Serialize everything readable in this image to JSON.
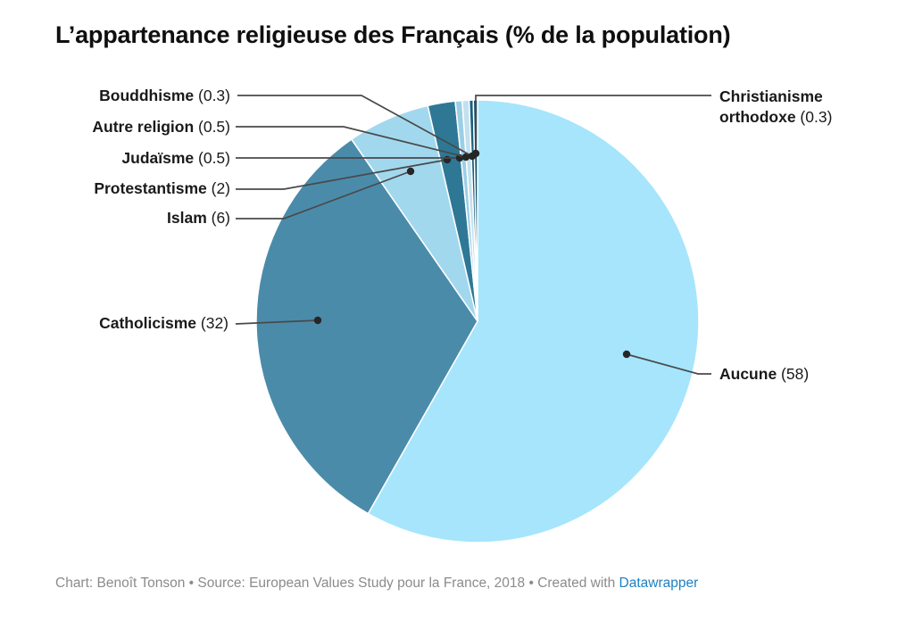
{
  "title": "L’appartenance religieuse des Français (% de la population)",
  "footer": {
    "prefix": "Chart: Benoît Tonson • Source: European Values Study pour la France, 2018 • Created with ",
    "link_label": "Datawrapper",
    "link_color": "#1d81c2",
    "text_color": "#8b8b8b"
  },
  "chart_data": {
    "type": "pie",
    "title": "L’appartenance religieuse des Français (% de la population)",
    "unit": "% de la population",
    "start_angle_deg": 0,
    "direction": "clockwise",
    "legend_position": "none",
    "labels_style": "leader-lines with dots, bold name + (value)",
    "slices": [
      {
        "label": "Aucune",
        "value": 58,
        "color": "#a6e5fc"
      },
      {
        "label": "Catholicisme",
        "value": 32,
        "color": "#4b8baa"
      },
      {
        "label": "Islam",
        "value": 6,
        "color": "#a2d8ee"
      },
      {
        "label": "Protestantisme",
        "value": 2,
        "color": "#2e7896"
      },
      {
        "label": "Judaïsme",
        "value": 0.5,
        "color": "#9ccfe6"
      },
      {
        "label": "Autre religion",
        "value": 0.5,
        "color": "#c2e1ee"
      },
      {
        "label": "Bouddhisme",
        "value": 0.3,
        "color": "#1a5f7e"
      },
      {
        "label": "Christianisme orthodoxe",
        "value": 0.3,
        "color": "#0c4d69"
      }
    ]
  }
}
